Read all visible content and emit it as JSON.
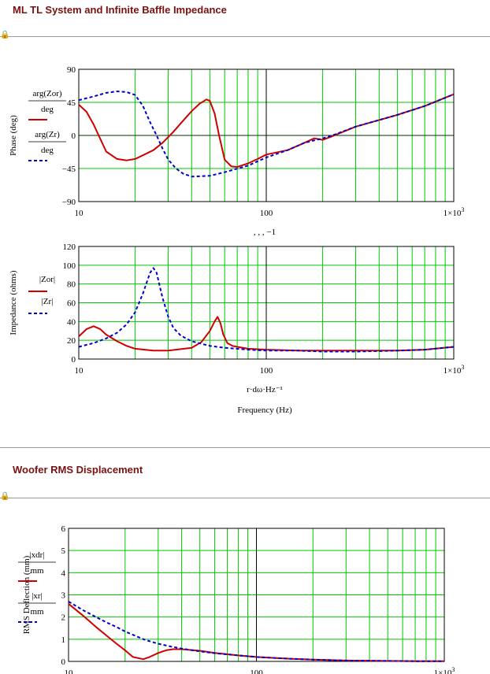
{
  "sections": [
    {
      "title": "ML TL System and Infinite Baffle Impedance"
    },
    {
      "title": "Woofer RMS Displacement"
    }
  ],
  "colors": {
    "grid": "#00c800",
    "series_red": "#d00000",
    "series_blue": "#0000cc",
    "title": "#7a1010"
  },
  "icons": {
    "lock": "lock-icon"
  },
  "chart_data": [
    {
      "type": "line",
      "xscale": "log",
      "xlim": [
        10,
        1000
      ],
      "ylim": [
        -90,
        90
      ],
      "yticks": [
        -90,
        -45,
        0,
        45,
        90
      ],
      "xticks": [
        "10",
        "100",
        "1×10³"
      ],
      "ylabel": "Phase (deg)",
      "xlabel": ", , , −1",
      "legend": [
        {
          "num": "arg(Zor)",
          "den": "deg"
        },
        {
          "num": "arg(Zr)",
          "den": "deg"
        }
      ],
      "series": [
        {
          "color": "red",
          "style": "solid",
          "x": [
            10,
            11,
            12,
            14,
            16,
            18,
            20,
            22,
            25,
            28,
            32,
            36,
            40,
            44,
            48,
            50,
            53,
            56,
            60,
            65,
            70,
            80,
            90,
            100,
            130,
            160,
            180,
            200,
            220,
            300,
            500,
            700,
            1000
          ],
          "y": [
            42,
            32,
            15,
            -22,
            -32,
            -34,
            -32,
            -27,
            -20,
            -10,
            5,
            20,
            33,
            43,
            49,
            47,
            30,
            0,
            -33,
            -42,
            -43,
            -38,
            -32,
            -26,
            -20,
            -10,
            -4,
            -6,
            -2,
            12,
            28,
            40,
            56
          ]
        },
        {
          "color": "blue",
          "style": "dash",
          "x": [
            10,
            12,
            14,
            16,
            18,
            20,
            22,
            24,
            26,
            28,
            30,
            33,
            36,
            40,
            50,
            60,
            80,
            100,
            130,
            160,
            200,
            220,
            300,
            500,
            700,
            1000
          ],
          "y": [
            48,
            53,
            58,
            60,
            59,
            55,
            40,
            18,
            0,
            -18,
            -33,
            -45,
            -52,
            -56,
            -55,
            -50,
            -41,
            -30,
            -20,
            -10,
            -4,
            -1,
            12,
            28,
            40,
            56
          ]
        }
      ]
    },
    {
      "type": "line",
      "xscale": "log",
      "xlim": [
        10,
        1000
      ],
      "ylim": [
        0,
        120
      ],
      "yticks": [
        0,
        20,
        40,
        60,
        80,
        100,
        120
      ],
      "xticks": [
        "10",
        "100",
        "1×10³"
      ],
      "ylabel": "Impedance (ohms)",
      "xlabel": "r·dω·Hz⁻¹",
      "xlabel2": "Frequency (Hz)",
      "legend": [
        {
          "num": "|Zor|",
          "den": ""
        },
        {
          "num": "|Zr|",
          "den": ""
        }
      ],
      "series": [
        {
          "color": "red",
          "style": "solid",
          "x": [
            10,
            11,
            12,
            13,
            14,
            16,
            18,
            20,
            25,
            30,
            40,
            45,
            50,
            53,
            55,
            57,
            59,
            62,
            66,
            70,
            80,
            100,
            150,
            200,
            300,
            500,
            700,
            1000
          ],
          "y": [
            24,
            32,
            35,
            32,
            26,
            19,
            14,
            11,
            9,
            9,
            12,
            18,
            30,
            40,
            45,
            38,
            26,
            17,
            14,
            13,
            11,
            10,
            9,
            9,
            9,
            9,
            10,
            13
          ]
        },
        {
          "color": "blue",
          "style": "dash",
          "x": [
            10,
            12,
            14,
            16,
            18,
            20,
            22,
            24,
            25,
            26,
            27,
            28,
            30,
            32,
            35,
            40,
            50,
            60,
            80,
            100,
            150,
            200,
            300,
            500,
            700,
            1000
          ],
          "y": [
            13,
            17,
            22,
            28,
            37,
            50,
            70,
            92,
            97,
            92,
            78,
            65,
            45,
            33,
            25,
            19,
            14,
            12,
            10,
            9,
            9,
            8,
            8,
            9,
            10,
            13
          ]
        }
      ]
    },
    {
      "type": "line",
      "xscale": "log",
      "xlim": [
        10,
        1000
      ],
      "ylim": [
        0,
        6
      ],
      "yticks": [
        0,
        1,
        2,
        3,
        4,
        5,
        6
      ],
      "xticks": [
        "10",
        "100",
        "1×10³"
      ],
      "ylabel": "RMS Deflection (mm)",
      "legend": [
        {
          "num": "|xdr|",
          "den": "mm"
        },
        {
          "num": "|xr|",
          "den": "mm"
        }
      ],
      "series": [
        {
          "color": "red",
          "style": "solid",
          "x": [
            10,
            12,
            14,
            16,
            18,
            20,
            22,
            25,
            27,
            30,
            33,
            36,
            40,
            50,
            60,
            80,
            100,
            150,
            200,
            300,
            500,
            700,
            1000
          ],
          "y": [
            2.6,
            2.05,
            1.55,
            1.15,
            0.8,
            0.5,
            0.2,
            0.1,
            0.2,
            0.38,
            0.5,
            0.55,
            0.55,
            0.48,
            0.38,
            0.27,
            0.2,
            0.12,
            0.08,
            0.04,
            0.02,
            0.01,
            0.01
          ]
        },
        {
          "color": "blue",
          "style": "dash",
          "x": [
            10,
            12,
            14,
            16,
            18,
            20,
            22,
            25,
            28,
            30,
            35,
            40,
            50,
            60,
            80,
            100,
            150,
            200,
            300,
            500,
            700,
            1000
          ],
          "y": [
            2.7,
            2.3,
            2.0,
            1.75,
            1.55,
            1.35,
            1.2,
            1.0,
            0.87,
            0.8,
            0.67,
            0.58,
            0.45,
            0.37,
            0.27,
            0.2,
            0.12,
            0.08,
            0.04,
            0.02,
            0.01,
            0.01
          ]
        }
      ]
    }
  ]
}
